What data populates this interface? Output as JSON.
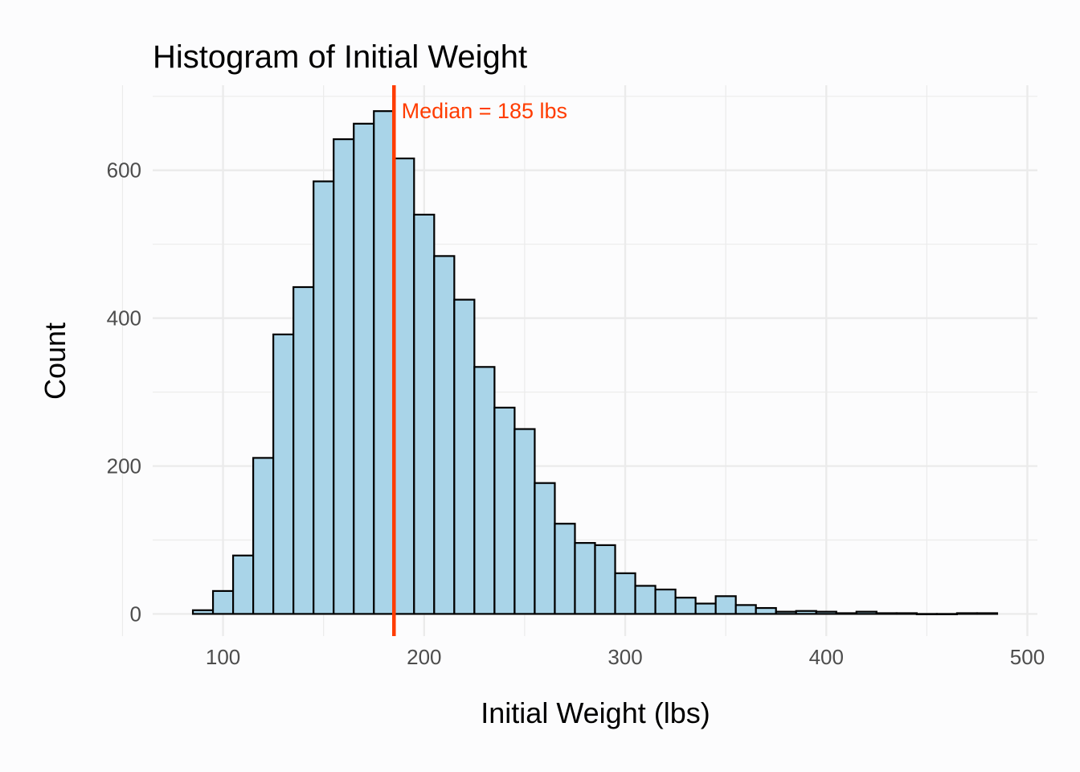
{
  "chart_data": {
    "type": "bar",
    "title": "Histogram of Initial Weight",
    "xlabel": "Initial Weight (lbs)",
    "ylabel": "Count",
    "xlim": [
      65,
      505
    ],
    "ylim": [
      -30,
      715
    ],
    "x_ticks": [
      100,
      200,
      300,
      400,
      500
    ],
    "y_ticks": [
      0,
      200,
      400,
      600
    ],
    "x_tick_labels": [
      "100",
      "200",
      "300",
      "400",
      "500"
    ],
    "y_tick_labels": [
      "0",
      "200",
      "400",
      "600"
    ],
    "grid": true,
    "bin_width": 10,
    "bin_starts": [
      85,
      95,
      105,
      115,
      125,
      135,
      145,
      155,
      165,
      175,
      185,
      195,
      205,
      215,
      225,
      235,
      245,
      255,
      265,
      275,
      285,
      295,
      305,
      315,
      325,
      335,
      345,
      355,
      365,
      375,
      385,
      395,
      405,
      415,
      425,
      435,
      445,
      455,
      465,
      475
    ],
    "values": [
      5,
      31,
      79,
      211,
      378,
      442,
      585,
      642,
      663,
      680,
      616,
      540,
      484,
      425,
      334,
      279,
      250,
      177,
      122,
      96,
      93,
      55,
      38,
      33,
      22,
      14,
      24,
      12,
      8,
      3,
      4,
      3,
      1,
      3,
      1,
      1,
      0,
      0,
      1,
      1
    ],
    "median": {
      "value": 185,
      "label": "Median = 185 lbs",
      "label_x": 230,
      "label_y": 680
    },
    "colors": {
      "bar_fill": "#a9d4e8",
      "bar_stroke": "#000000",
      "median": "#ff3c00",
      "grid": "#ebebeb",
      "background": "#fcfcfd"
    }
  }
}
